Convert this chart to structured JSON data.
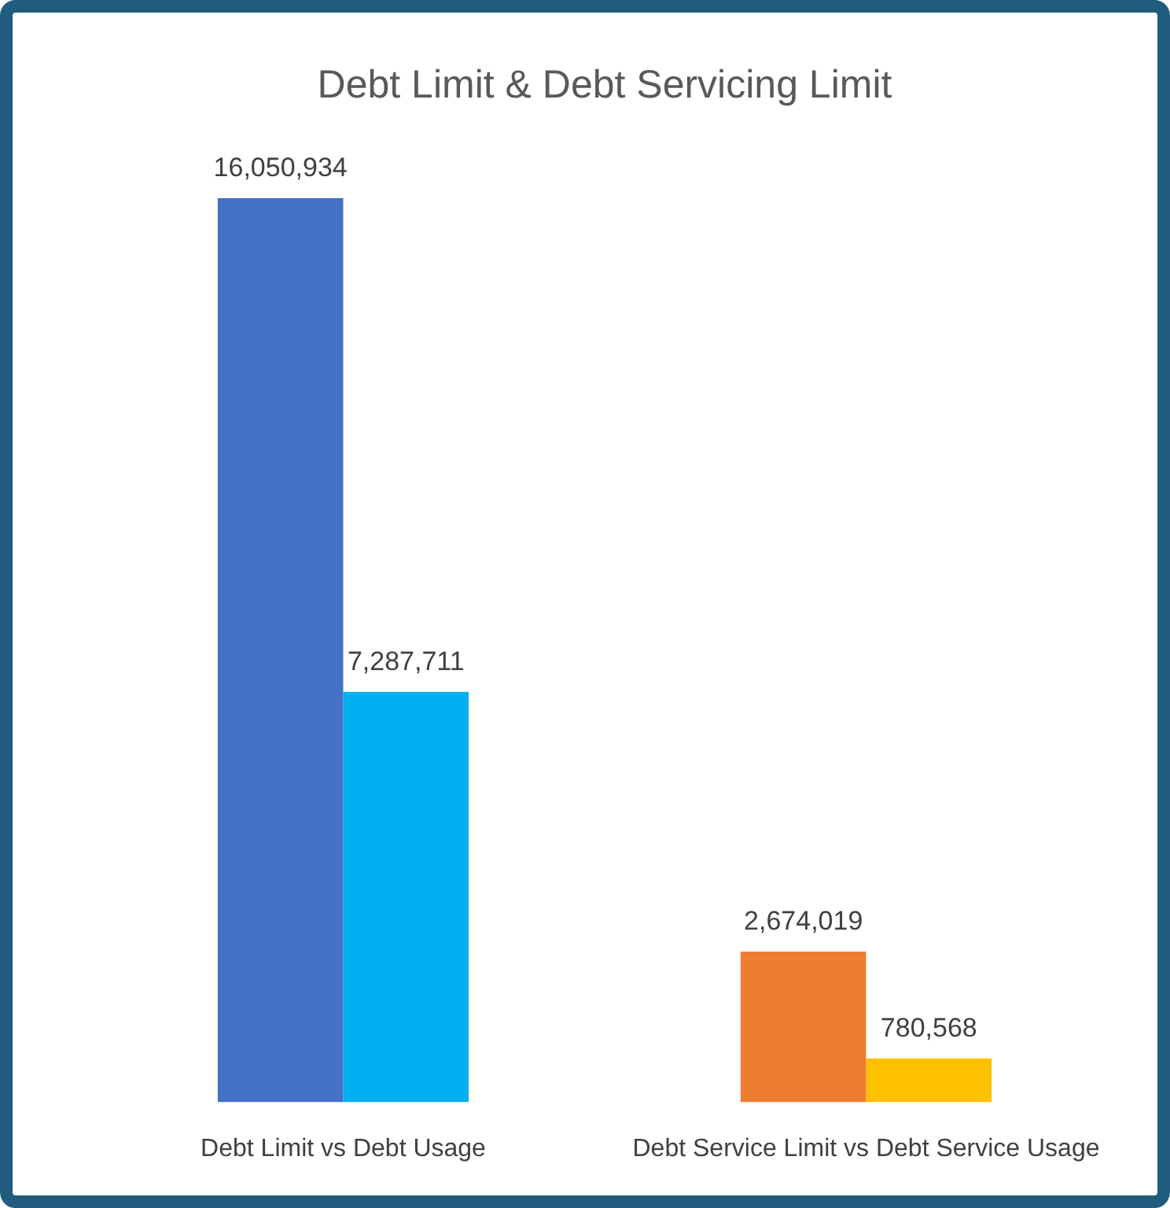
{
  "chart_data": {
    "type": "bar",
    "title": "Debt Limit & Debt Servicing Limit",
    "categories": [
      "Debt Limit vs Debt Usage",
      "Debt Service Limit vs Debt Service Usage"
    ],
    "series": [
      {
        "colors": [
          "#4472c4",
          "#ed7d31"
        ],
        "values": [
          16050934,
          2674019
        ],
        "value_labels": [
          "16,050,934",
          "2,674,019"
        ]
      },
      {
        "colors": [
          "#00b0f0",
          "#ffc000"
        ],
        "values": [
          7287711,
          780568
        ],
        "value_labels": [
          "7,287,711",
          "780,568"
        ]
      }
    ],
    "tick_labels": "x"
  }
}
